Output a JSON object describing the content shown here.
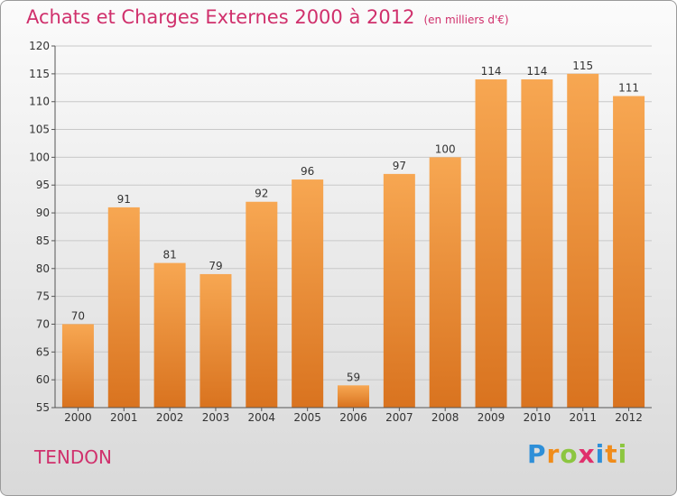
{
  "title": "Achats et Charges Externes 2000 à 2012",
  "subtitle": "(en milliers d'€)",
  "commune": "TENDON",
  "logo": {
    "letters": [
      "P",
      "r",
      "o",
      "x",
      "i",
      "t",
      "i"
    ],
    "colors": [
      "#2e8fd8",
      "#f08c1a",
      "#8cc63f",
      "#e0306c",
      "#2e8fd8",
      "#f08c1a",
      "#8cc63f"
    ]
  },
  "colors": {
    "title": "#d0306c",
    "bar_top": "#f7a752",
    "bar_bottom": "#d9731f"
  },
  "chart_data": {
    "type": "bar",
    "title": "Achats et Charges Externes 2000 à 2012",
    "subtitle": "(en milliers d'€)",
    "categories": [
      "2000",
      "2001",
      "2002",
      "2003",
      "2004",
      "2005",
      "2006",
      "2007",
      "2008",
      "2009",
      "2010",
      "2011",
      "2012"
    ],
    "values": [
      70,
      91,
      81,
      79,
      92,
      96,
      59,
      97,
      100,
      114,
      114,
      115,
      111
    ],
    "ylim": [
      55,
      120
    ],
    "yticks": [
      55,
      60,
      65,
      70,
      75,
      80,
      85,
      90,
      95,
      100,
      105,
      110,
      115,
      120
    ],
    "grid": true,
    "xlabel": "",
    "ylabel": ""
  }
}
